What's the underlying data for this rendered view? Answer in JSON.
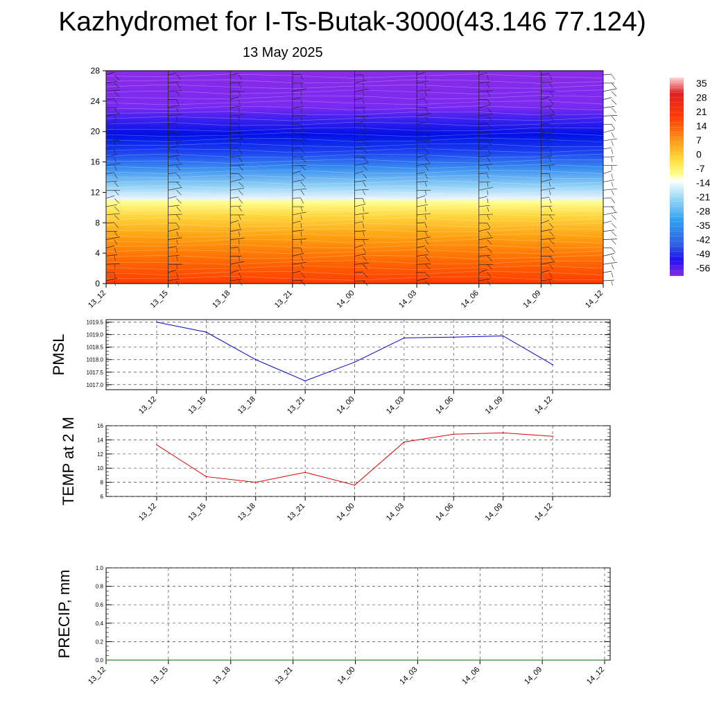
{
  "header": {
    "title": "Kazhydromet for I-Ts-Butak-3000(43.146 77.124)",
    "subtitle": "13 May 2025"
  },
  "chart_data": [
    {
      "type": "heatmap",
      "title": "",
      "x_categories": [
        "13_12",
        "13_15",
        "13_18",
        "13_21",
        "14_00",
        "14_03",
        "14_06",
        "14_09",
        "14_12"
      ],
      "y_ticks": [
        0,
        4,
        8,
        12,
        16,
        20,
        24,
        28
      ],
      "ylim": [
        0,
        28
      ],
      "colorbar_labels": [
        "35",
        "28",
        "21",
        "14",
        "7",
        "0",
        "-7",
        "-14",
        "-21",
        "-28",
        "-35",
        "-42",
        "-49",
        "-56"
      ],
      "colors": {
        "dark_purple": "#8a2be2",
        "blue": "#1a1aff",
        "light_blue": "#9fd8f5",
        "yellow": "#ffff80",
        "orange": "#ff9a1a",
        "red": "#ff3a00"
      },
      "overlay": "wind barbs"
    },
    {
      "type": "line",
      "ylabel": "PMSL",
      "categories": [
        "13_12",
        "13_15",
        "13_18",
        "13_21",
        "14_00",
        "14_03",
        "14_06",
        "14_09",
        "14_12"
      ],
      "values": [
        1019.5,
        1019.1,
        1018.0,
        1017.15,
        1017.9,
        1018.87,
        1018.9,
        1018.95,
        1017.8
      ],
      "y_ticks": [
        "1017.0",
        "1017.5",
        "1018.0",
        "1018.5",
        "1019.0",
        "1019.5"
      ],
      "ylim": [
        1016.8,
        1019.6
      ],
      "color": "#0000cc",
      "grid": true
    },
    {
      "type": "line",
      "ylabel": "TEMP at 2 M",
      "categories": [
        "13_12",
        "13_15",
        "13_18",
        "13_21",
        "14_00",
        "14_03",
        "14_06",
        "14_09",
        "14_12"
      ],
      "values": [
        13.3,
        8.8,
        8.0,
        9.4,
        7.6,
        13.7,
        14.8,
        15.0,
        14.5
      ],
      "y_ticks": [
        "6",
        "8",
        "10",
        "12",
        "14",
        "16"
      ],
      "ylim": [
        6,
        16
      ],
      "color": "#dd0000",
      "grid": true
    },
    {
      "type": "line",
      "ylabel": "PRECIP, mm",
      "categories": [
        "13_12",
        "13_15",
        "13_18",
        "13_21",
        "14_00",
        "14_03",
        "14_06",
        "14_09",
        "14_12"
      ],
      "values": [
        0,
        0,
        0,
        0,
        0,
        0,
        0,
        0,
        0
      ],
      "y_ticks": [
        "0.0",
        "0.2",
        "0.4",
        "0.6",
        "0.8",
        "1.0"
      ],
      "ylim": [
        0,
        1
      ],
      "color": "#006600",
      "grid": true
    }
  ]
}
